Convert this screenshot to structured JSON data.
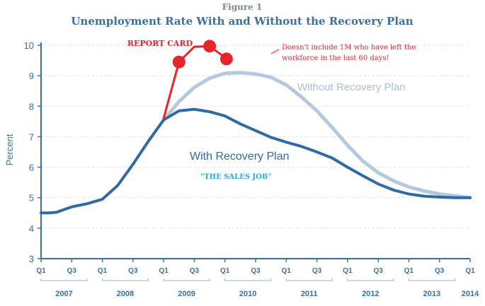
{
  "figure_label": "Figure 1",
  "title": "Unemployment Rate With and Without the Recovery Plan",
  "ylabel": "Percent",
  "annotations": {
    "report_card": "REPORT CARD",
    "note_line1": "Doesn't include 1M who have left the",
    "note_line2": "workforce in the last 60 days!",
    "sales_job": "\"THE SALES JOB\"",
    "with_label": "With Recovery Plan",
    "without_label": "Without Recovery Plan"
  },
  "colors": {
    "with": "#2f6aa6",
    "without": "#b3c9df",
    "actual": "#e8232a",
    "axis": "#3a6f9e",
    "grid": "#d9dfe6"
  },
  "chart_data": {
    "type": "line",
    "title": "Unemployment Rate With and Without the Recovery Plan",
    "ylabel": "Percent",
    "ylim": [
      3,
      10
    ],
    "yticks": [
      3,
      4,
      5,
      6,
      7,
      8,
      9,
      10
    ],
    "grid": "horizontal dashed",
    "xlim": [
      0,
      28
    ],
    "quarter_ticks": [
      {
        "x": 0,
        "label": "Q1"
      },
      {
        "x": 2,
        "label": "Q3"
      },
      {
        "x": 4,
        "label": "Q1"
      },
      {
        "x": 6,
        "label": "Q3"
      },
      {
        "x": 8,
        "label": "Q1"
      },
      {
        "x": 10,
        "label": "Q3"
      },
      {
        "x": 12,
        "label": "Q1"
      },
      {
        "x": 14,
        "label": "Q3"
      },
      {
        "x": 16,
        "label": "Q1"
      },
      {
        "x": 18,
        "label": "Q3"
      },
      {
        "x": 20,
        "label": "Q1"
      },
      {
        "x": 22,
        "label": "Q3"
      },
      {
        "x": 24,
        "label": "Q1"
      },
      {
        "x": 26,
        "label": "Q3"
      },
      {
        "x": 28,
        "label": "Q1"
      }
    ],
    "years": [
      {
        "label": "2007",
        "start": 0,
        "end": 3
      },
      {
        "label": "2008",
        "start": 4,
        "end": 7
      },
      {
        "label": "2009",
        "start": 8,
        "end": 11
      },
      {
        "label": "2010",
        "start": 12,
        "end": 15
      },
      {
        "label": "2011",
        "start": 16,
        "end": 19
      },
      {
        "label": "2012",
        "start": 20,
        "end": 23
      },
      {
        "label": "2013",
        "start": 24,
        "end": 27
      },
      {
        "label": "2014",
        "start": 28,
        "end": 28
      }
    ],
    "series": [
      {
        "name": "With Recovery Plan",
        "x": [
          0,
          0.5,
          1,
          2,
          3,
          4,
          5,
          6,
          7,
          8,
          9,
          10,
          11,
          12,
          13,
          14,
          15,
          16,
          17,
          18,
          19,
          20,
          21,
          22,
          23,
          24,
          25,
          26,
          27,
          28
        ],
        "y": [
          4.5,
          4.5,
          4.52,
          4.7,
          4.8,
          4.95,
          5.4,
          6.1,
          6.85,
          7.55,
          7.85,
          7.9,
          7.82,
          7.68,
          7.42,
          7.2,
          6.98,
          6.82,
          6.68,
          6.5,
          6.3,
          6.0,
          5.72,
          5.45,
          5.25,
          5.12,
          5.05,
          5.02,
          5.0,
          5.0
        ]
      },
      {
        "name": "Without Recovery Plan",
        "x": [
          8,
          9,
          10,
          11,
          12,
          13,
          14,
          15,
          16,
          17,
          18,
          19,
          20,
          21,
          22,
          23,
          24,
          25,
          26,
          27,
          28
        ],
        "y": [
          7.55,
          8.15,
          8.62,
          8.92,
          9.08,
          9.1,
          9.06,
          8.95,
          8.7,
          8.3,
          7.85,
          7.3,
          6.72,
          6.2,
          5.82,
          5.55,
          5.35,
          5.22,
          5.12,
          5.06,
          5.0
        ]
      },
      {
        "name": "",
        "x": [
          8,
          9,
          10,
          11,
          12
        ],
        "y": [
          7.6,
          9.45,
          9.95,
          9.97,
          9.6
        ],
        "markers": [
          {
            "x": 9,
            "y": 9.45
          },
          {
            "x": 11,
            "y": 9.97
          },
          {
            "x": 12.1,
            "y": 9.55
          }
        ]
      }
    ]
  }
}
